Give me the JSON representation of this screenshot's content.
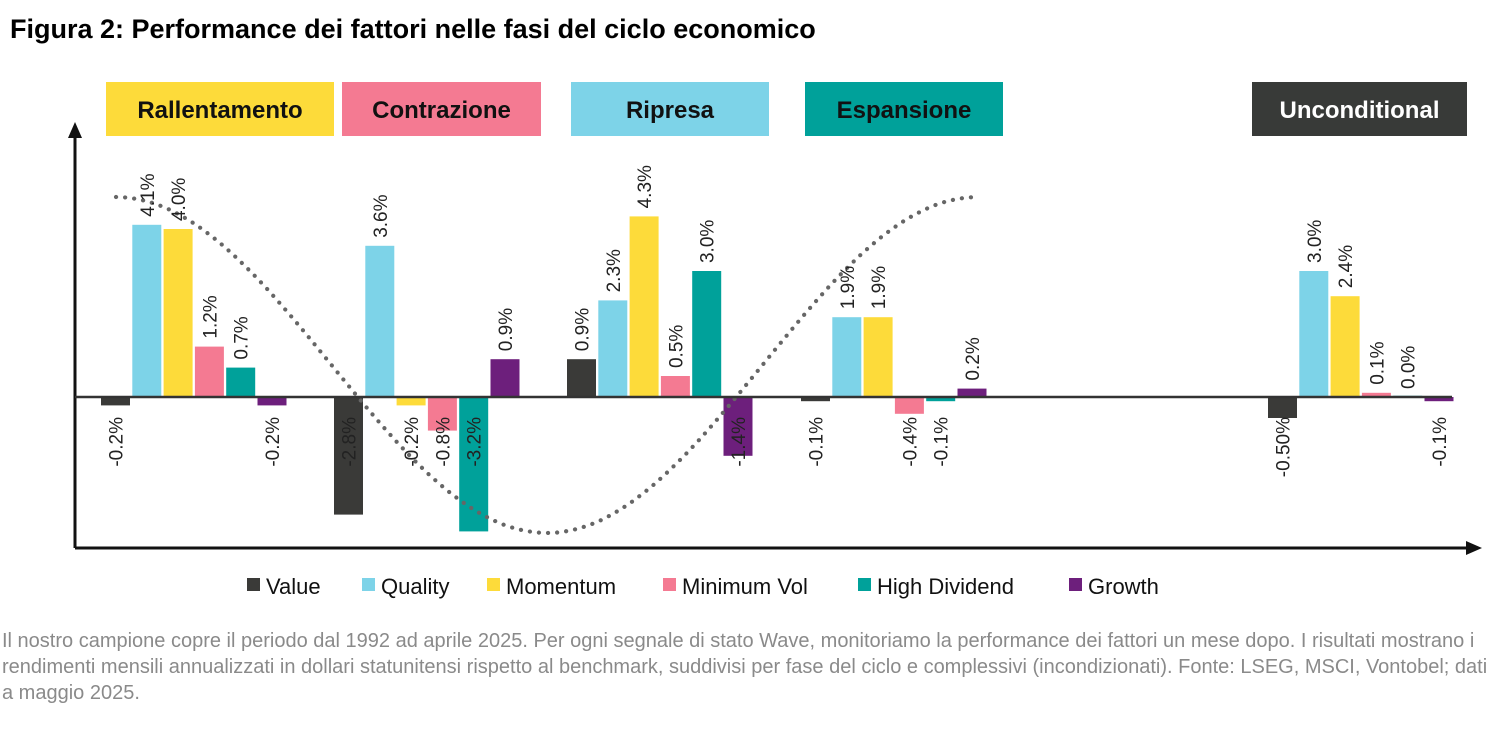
{
  "title": "Figura 2: Performance dei fattori nelle fasi del ciclo economico",
  "note": "Il nostro campione copre il periodo dal 1992 ad aprile 2025. Per ogni segnale di stato Wave, monitoriamo la performance dei fattori un mese dopo. I risultati mostrano i rendimenti mensili annualizzati in dollari statunitensi rispetto al benchmark, suddivisi per fase del ciclo e complessivi (incondizionati). Fonte: LSEG, MSCI, Vontobel; dati a maggio 2025.",
  "colors": {
    "Value": "#3a3a38",
    "Quality": "#7dd3e8",
    "Momentum": "#fddb3a",
    "Minimum Vol": "#f47a92",
    "High Dividend": "#00a19a",
    "Growth": "#6d1f7c",
    "axis": "#111111",
    "curve": "#666666"
  },
  "phases": [
    {
      "name": "Rallentamento",
      "bg": "#fddb3a",
      "fg": "#111111"
    },
    {
      "name": "Contrazione",
      "bg": "#f47a92",
      "fg": "#111111"
    },
    {
      "name": "Ripresa",
      "bg": "#7dd3e8",
      "fg": "#111111"
    },
    {
      "name": "Espansione",
      "bg": "#00a19a",
      "fg": "#111111"
    },
    {
      "name": "Unconditional",
      "bg": "#383a38",
      "fg": "#ffffff"
    }
  ],
  "chart_data": {
    "type": "bar",
    "categories": [
      "Rallentamento",
      "Contrazione",
      "Ripresa",
      "Espansione",
      "Unconditional"
    ],
    "series": [
      {
        "name": "Value",
        "values": [
          -0.2,
          -2.8,
          0.9,
          -0.1,
          -0.5
        ],
        "labels": [
          "-0.2%",
          "-2.8%",
          "0.9%",
          "-0.1%",
          "-0.50%"
        ]
      },
      {
        "name": "Quality",
        "values": [
          4.1,
          3.6,
          2.3,
          1.9,
          3.0
        ],
        "labels": [
          "4.1%",
          "3.6%",
          "2.3%",
          "1.9%",
          "3.0%"
        ]
      },
      {
        "name": "Momentum",
        "values": [
          4.0,
          -0.2,
          4.3,
          1.9,
          2.4
        ],
        "labels": [
          "4.0%",
          "-0.2%",
          "4.3%",
          "1.9%",
          "2.4%"
        ]
      },
      {
        "name": "Minimum Vol",
        "values": [
          1.2,
          -0.8,
          0.5,
          -0.4,
          0.1
        ],
        "labels": [
          "1.2%",
          "-0.8%",
          "0.5%",
          "-0.4%",
          "0.1%"
        ]
      },
      {
        "name": "High Dividend",
        "values": [
          0.7,
          -3.2,
          3.0,
          -0.1,
          0.0
        ],
        "labels": [
          "0.7%",
          "-3.2%",
          "3.0%",
          "-0.1%",
          "0.0%"
        ]
      },
      {
        "name": "Growth",
        "values": [
          -0.2,
          0.9,
          -1.4,
          0.2,
          -0.1
        ],
        "labels": [
          "-0.2%",
          "0.9%",
          "-1.4%",
          "0.2%",
          "-0.1%"
        ]
      }
    ],
    "legend": [
      "Value",
      "Quality",
      "Momentum",
      "Minimum Vol",
      "High Dividend",
      "Growth"
    ],
    "legend_position": "bottom",
    "ylim": [
      -3.6,
      5.6
    ],
    "grid": false,
    "annotations": "dotted cycle curve"
  }
}
